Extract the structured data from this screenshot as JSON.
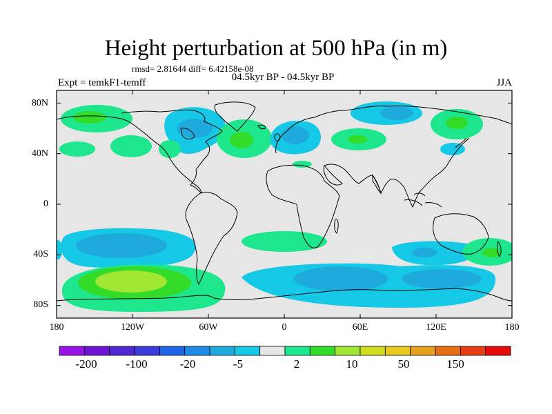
{
  "chart_data": {
    "type": "map-contour",
    "title": "Height perturbation at 500 hPa (in m)",
    "stats": "rmsd= 2.81644 diff= 6.42158e-08",
    "period_label": "04.5kyr BP - 04.5kyr BP",
    "experiment": "Expt = temkF1-temff",
    "season": "JJA",
    "lat_range": [
      -90,
      90
    ],
    "lon_range": [
      -180,
      180
    ],
    "lat_ticks": [
      "80N",
      "40N",
      "0",
      "40S",
      "80S"
    ],
    "lat_tick_values": [
      80,
      40,
      0,
      -40,
      -80
    ],
    "lon_ticks": [
      "180",
      "120W",
      "60W",
      "0",
      "60E",
      "120E",
      "180"
    ],
    "lon_tick_values": [
      -180,
      -120,
      -60,
      0,
      60,
      120,
      180
    ],
    "colorbar": {
      "labels": [
        "-200",
        "-100",
        "-20",
        "-5",
        "2",
        "10",
        "50",
        "150"
      ],
      "colors": [
        "#9614e6",
        "#6e14d2",
        "#5028d2",
        "#3c3cdc",
        "#1e64e6",
        "#1e8ce6",
        "#1eaadc",
        "#14c8e6",
        "#e6e6e6",
        "#1ee68c",
        "#32dc28",
        "#a0e632",
        "#d2dc1e",
        "#e6c81e",
        "#e6a01e",
        "#e66e14",
        "#e63c14",
        "#e60a0a"
      ]
    },
    "anomaly_regions": [
      {
        "name": "north-pacific-high",
        "lon": -145,
        "lat": 70,
        "level": 2
      },
      {
        "name": "north-america-low",
        "lon": -95,
        "lat": 60,
        "level": -5
      },
      {
        "name": "north-atlantic-high",
        "lon": -35,
        "lat": 50,
        "level": 10
      },
      {
        "name": "europe-low",
        "lon": 10,
        "lat": 48,
        "level": -5
      },
      {
        "name": "central-asia-high",
        "lon": 55,
        "lat": 52,
        "level": 10
      },
      {
        "name": "siberia-low",
        "lon": 75,
        "lat": 76,
        "level": -5
      },
      {
        "name": "east-asia-high",
        "lon": 140,
        "lat": 62,
        "level": 10
      },
      {
        "name": "south-pacific-low",
        "lon": -140,
        "lat": -30,
        "level": -5
      },
      {
        "name": "south-atlantic-high",
        "lon": 0,
        "lat": -25,
        "level": 2
      },
      {
        "name": "indian-ocean-low",
        "lon": 75,
        "lat": -25,
        "level": -5
      },
      {
        "name": "australia-east-high",
        "lon": 160,
        "lat": -35,
        "level": 10
      },
      {
        "name": "southern-pacific-high",
        "lon": -120,
        "lat": -70,
        "level": 10
      },
      {
        "name": "southern-indian-low",
        "lon": 70,
        "lat": -70,
        "level": -5
      }
    ]
  }
}
